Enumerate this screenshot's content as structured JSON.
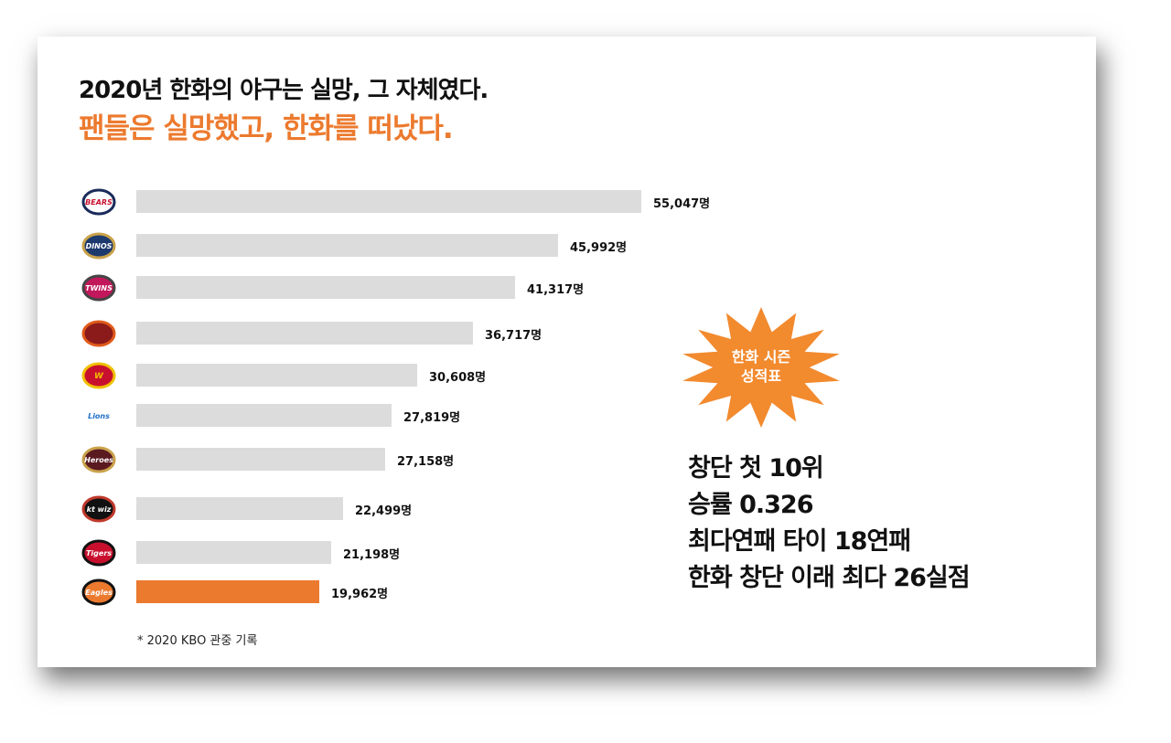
{
  "header": {
    "title": "2020년 한화의 야구는 실망, 그 자체였다.",
    "subtitle": "팬들은 실망했고, 한화를 떠났다."
  },
  "chart_data": {
    "type": "bar",
    "orientation": "horizontal",
    "categories": [
      "BEARS",
      "DINOS",
      "TWINS",
      "GIANTS",
      "WYVERNS",
      "Lions",
      "Heroes",
      "kt wiz",
      "Tigers",
      "Eagles"
    ],
    "values": [
      55047,
      45992,
      41317,
      36717,
      30608,
      27819,
      27158,
      22499,
      21198,
      19962
    ],
    "value_labels": [
      "55,047명",
      "45,992명",
      "41,317명",
      "36,717명",
      "30,608명",
      "27,819명",
      "27,158명",
      "22,499명",
      "21,198명",
      "19,962명"
    ],
    "highlight_index": 9,
    "colors": {
      "bar": "#dcdcdc",
      "highlight": "#ec7a2e"
    },
    "footnote": "* 2020 KBO 관중 기록"
  },
  "badge": {
    "line1": "한화 시즌",
    "line2": "성적표",
    "color": "#f28a2e"
  },
  "stats": [
    "창단 첫 10위",
    "승률 0.326",
    "최다연패 타이 18연패",
    "한화 창단 이래 최다 26실점"
  ],
  "logos": [
    {
      "name": "bears-logo",
      "text": "BEARS",
      "bg": "#ffffff",
      "ring": "#1a2a5a",
      "fg": "#c8102e"
    },
    {
      "name": "dinos-logo",
      "text": "DINOS",
      "bg": "#1d3a6e",
      "ring": "#c9a24a",
      "fg": "#ffffff"
    },
    {
      "name": "twins-logo",
      "text": "TWINS",
      "bg": "#c2185b",
      "ring": "#444444",
      "fg": "#ffffff"
    },
    {
      "name": "giants-logo",
      "text": "",
      "bg": "#8b1a1a",
      "ring": "#e05a1a",
      "fg": "#ffffff"
    },
    {
      "name": "wyverns-logo",
      "text": "W",
      "bg": "#c8102e",
      "ring": "#f0c000",
      "fg": "#f0c000"
    },
    {
      "name": "lions-logo",
      "text": "Lions",
      "bg": "#ffffff",
      "ring": "#ffffff",
      "fg": "#1e6fc6"
    },
    {
      "name": "heroes-logo",
      "text": "Heroes",
      "bg": "#5a1a20",
      "ring": "#c9a24a",
      "fg": "#ffffff"
    },
    {
      "name": "ktwiz-logo",
      "text": "kt wiz",
      "bg": "#111111",
      "ring": "#c0392b",
      "fg": "#ffffff"
    },
    {
      "name": "tigers-logo",
      "text": "Tigers",
      "bg": "#c8102e",
      "ring": "#111111",
      "fg": "#ffffff"
    },
    {
      "name": "eagles-logo",
      "text": "Eagles",
      "bg": "#ec7a2e",
      "ring": "#111111",
      "fg": "#ffffff"
    }
  ]
}
